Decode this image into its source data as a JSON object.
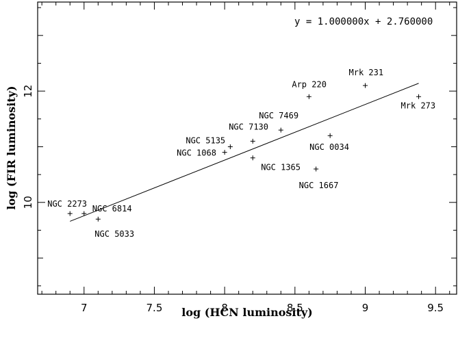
{
  "chart_data": {
    "type": "scatter",
    "title": "",
    "xlabel": "log (HCN luminosity)",
    "ylabel": "log (FIR luminosity)",
    "xlim": [
      6.67,
      9.65
    ],
    "ylim": [
      8.35,
      13.6
    ],
    "x_ticks": [
      7,
      7.5,
      8,
      8.5,
      9,
      9.5
    ],
    "x_tick_labels": [
      "7",
      "7.5",
      "8",
      "8.5",
      "9",
      "9.5"
    ],
    "y_ticks": [
      10,
      12
    ],
    "y_tick_labels": [
      "10",
      "12"
    ],
    "grid": false,
    "fit_equation": "y = 1.000000x + 2.760000",
    "fit": {
      "slope": 1.0,
      "intercept": 2.76,
      "x_range": [
        6.9,
        9.38
      ]
    },
    "points": [
      {
        "name": "NGC 2273",
        "x": 6.9,
        "y": 9.8
      },
      {
        "name": "NGC 6814",
        "x": 7.0,
        "y": 9.8
      },
      {
        "name": "NGC 5033",
        "x": 7.1,
        "y": 9.7
      },
      {
        "name": "NGC 1068",
        "x": 8.0,
        "y": 10.9
      },
      {
        "name": "NGC 5135",
        "x": 8.04,
        "y": 11.0
      },
      {
        "name": "NGC 7130",
        "x": 8.2,
        "y": 11.1
      },
      {
        "name": "NGC 1365",
        "x": 8.2,
        "y": 10.8
      },
      {
        "name": "NGC 7469",
        "x": 8.4,
        "y": 11.3
      },
      {
        "name": "Arp 220",
        "x": 8.6,
        "y": 11.9
      },
      {
        "name": "NGC 0034",
        "x": 8.75,
        "y": 11.2
      },
      {
        "name": "NGC 1667",
        "x": 8.65,
        "y": 10.6
      },
      {
        "name": "Mrk 231",
        "x": 9.0,
        "y": 12.1
      },
      {
        "name": "Mrk 273",
        "x": 9.38,
        "y": 11.9
      }
    ]
  }
}
